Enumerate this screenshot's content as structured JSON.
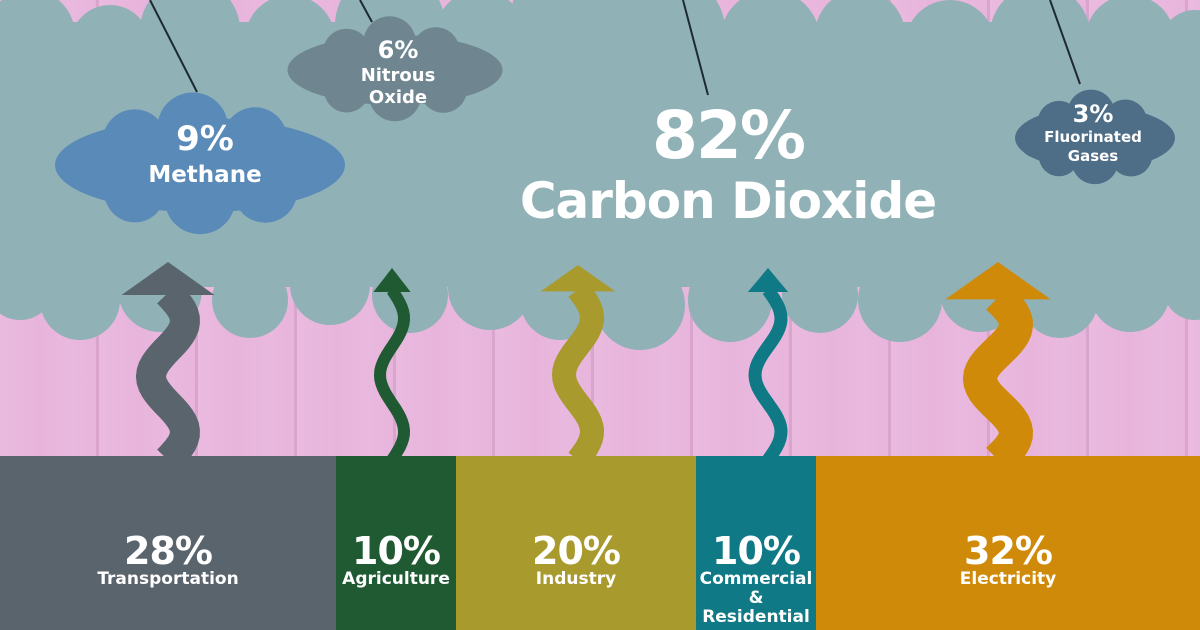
{
  "chart_data": [
    {
      "type": "pie",
      "title": "",
      "categories": [
        "Carbon Dioxide",
        "Methane",
        "Nitrous Oxide",
        "Fluorinated Gases"
      ],
      "values": [
        82,
        9,
        6,
        3
      ],
      "labels": [
        {
          "pct": "82%",
          "name": "Carbon Dioxide"
        },
        {
          "pct": "9%",
          "name": "Methane"
        },
        {
          "pct": "6%",
          "name": "Nitrous Oxide",
          "lines": [
            "Nitrous",
            "Oxide"
          ]
        },
        {
          "pct": "3%",
          "name": "Fluorinated Gases",
          "lines": [
            "Fluorinated",
            "Gases"
          ]
        }
      ]
    },
    {
      "type": "bar",
      "title": "",
      "categories": [
        "Transportation",
        "Agriculture",
        "Industry",
        "Commercial & Residential",
        "Electricity"
      ],
      "values": [
        28,
        10,
        20,
        10,
        32
      ],
      "labels": [
        {
          "pct": "28%",
          "lines": [
            "Transportation"
          ]
        },
        {
          "pct": "10%",
          "lines": [
            "Agriculture"
          ]
        },
        {
          "pct": "20%",
          "lines": [
            "Industry"
          ]
        },
        {
          "pct": "10%",
          "lines": [
            "Commercial",
            "& Residential"
          ]
        },
        {
          "pct": "32%",
          "lines": [
            "Electricity"
          ]
        }
      ]
    }
  ],
  "colors": {
    "background": "#e8b4dc",
    "carbon_dioxide": "#90b1b6",
    "methane": "#5a8ab8",
    "nitrous_oxide": "#6f8690",
    "fluorinated_gases": "#4e6e88",
    "transportation": "#5a646d",
    "agriculture": "#1f5a32",
    "industry": "#a89a2c",
    "commercial_residential": "#0f7a86",
    "electricity": "#d08a0a",
    "text": "#ffffff"
  }
}
